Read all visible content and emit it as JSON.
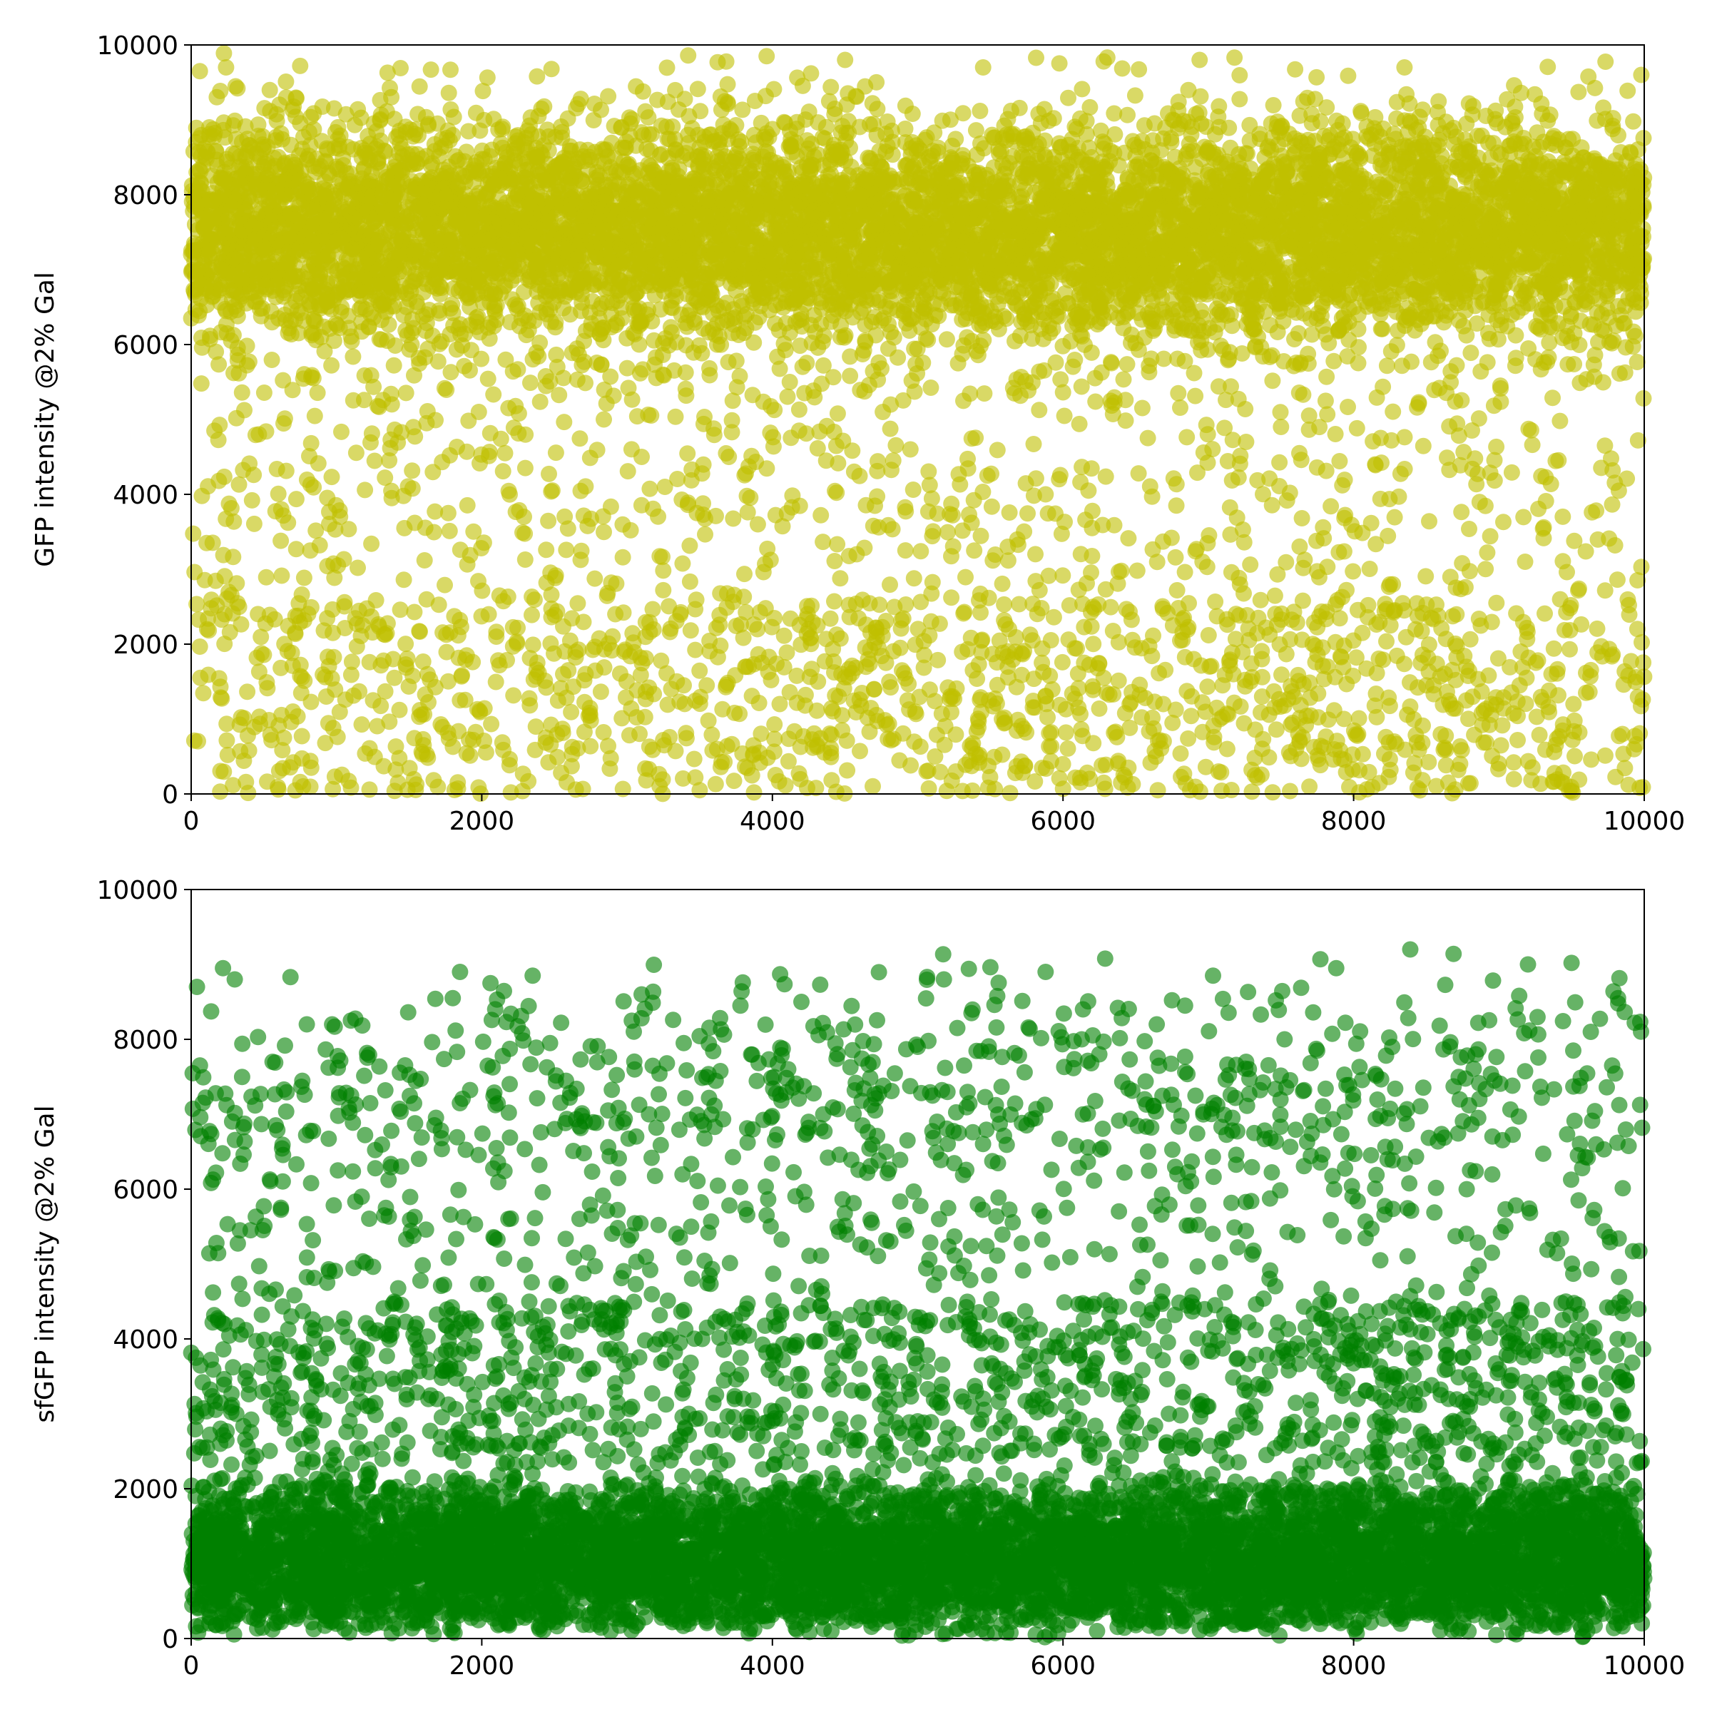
{
  "figure": {
    "background": "#ffffff"
  },
  "chart_data": [
    {
      "type": "scatter",
      "title": "",
      "xlabel": "",
      "ylabel": "GFP intensity @2% Gal",
      "xlim": [
        0,
        10000
      ],
      "ylim": [
        0,
        10000
      ],
      "xticks": [
        "0",
        "2000",
        "4000",
        "6000",
        "8000",
        "10000"
      ],
      "yticks": [
        "0",
        "2000",
        "4000",
        "6000",
        "8000",
        "10000"
      ],
      "grid": false,
      "legend": false,
      "marker_color": "#bfbf00",
      "marker_alpha": 0.6,
      "n_points": 10000,
      "distribution": {
        "x_range": [
          0,
          10000
        ],
        "components": [
          {
            "weight": 0.8,
            "y_mean": 7500,
            "y_sd": 750,
            "y_min": 5200,
            "y_max": 9900
          },
          {
            "weight": 0.13,
            "y_range": [
              0,
              2600
            ]
          },
          {
            "weight": 0.07,
            "y_range": [
              2600,
              5800
            ]
          }
        ]
      },
      "series": [
        {
          "values": [
            [
              120,
              7650
            ],
            [
              455,
              8100
            ],
            [
              880,
              7200
            ],
            [
              1210,
              6900
            ],
            [
              1650,
              7800
            ],
            [
              2050,
              7400
            ],
            [
              2440,
              8200
            ],
            [
              2900,
              7100
            ],
            [
              3300,
              7600
            ],
            [
              3750,
              8000
            ],
            [
              4150,
              7300
            ],
            [
              4600,
              6800
            ],
            [
              5050,
              7900
            ],
            [
              5500,
              7500
            ],
            [
              5900,
              8300
            ],
            [
              6300,
              7000
            ],
            [
              6750,
              7700
            ],
            [
              7150,
              8100
            ],
            [
              7600,
              6600
            ],
            [
              8050,
              7400
            ],
            [
              8450,
              7800
            ],
            [
              8900,
              7200
            ],
            [
              9300,
              8000
            ],
            [
              9750,
              7500
            ],
            [
              60,
              9650
            ],
            [
              240,
              9700
            ],
            [
              750,
              9720
            ],
            [
              1650,
              9670
            ],
            [
              2380,
              9580
            ],
            [
              3420,
              9860
            ],
            [
              3960,
              9850
            ],
            [
              4500,
              9800
            ],
            [
              5450,
              9700
            ],
            [
              6280,
              9780
            ],
            [
              6940,
              9800
            ],
            [
              7180,
              9830
            ],
            [
              8350,
              9700
            ],
            [
              9980,
              9600
            ],
            [
              70,
              5480
            ],
            [
              160,
              4850
            ],
            [
              430,
              4260
            ],
            [
              620,
              3800
            ],
            [
              820,
              3250
            ],
            [
              1010,
              3050
            ],
            [
              1240,
              3340
            ],
            [
              1380,
              3950
            ],
            [
              1620,
              4950
            ],
            [
              1780,
              4520
            ],
            [
              1980,
              5100
            ],
            [
              2160,
              4550
            ],
            [
              2290,
              3700
            ],
            [
              2520,
              5700
            ],
            [
              2840,
              5000
            ],
            [
              3100,
              4500
            ],
            [
              3260,
              4100
            ],
            [
              3480,
              3750
            ],
            [
              3700,
              4500
            ],
            [
              3900,
              3600
            ],
            [
              4120,
              5500
            ],
            [
              4370,
              4450
            ],
            [
              4580,
              3200
            ],
            [
              4760,
              5100
            ],
            [
              4950,
              4600
            ],
            [
              5240,
              3720
            ],
            [
              5480,
              4250
            ],
            [
              5620,
              3300
            ],
            [
              5880,
              4000
            ],
            [
              6200,
              3550
            ],
            [
              6520,
              4280
            ],
            [
              6780,
              3850
            ],
            [
              6960,
              3100
            ],
            [
              7260,
              4700
            ],
            [
              7500,
              4900
            ],
            [
              7790,
              3560
            ],
            [
              8100,
              2520
            ],
            [
              8260,
              4720
            ],
            [
              8520,
              3640
            ],
            [
              8770,
              2760
            ],
            [
              8940,
              3440
            ],
            [
              9180,
              3100
            ],
            [
              9420,
              4980
            ],
            [
              9640,
              3760
            ],
            [
              9880,
              4210
            ],
            [
              110,
              2200
            ],
            [
              230,
              2400
            ],
            [
              390,
              780
            ],
            [
              520,
              1490
            ],
            [
              700,
              1100
            ],
            [
              930,
              1300
            ],
            [
              1180,
              2250
            ],
            [
              1390,
              1800
            ],
            [
              1600,
              650
            ],
            [
              1850,
              1250
            ],
            [
              2100,
              2100
            ],
            [
              2320,
              170
            ],
            [
              2560,
              1600
            ],
            [
              2750,
              980
            ],
            [
              2980,
              1900
            ],
            [
              3150,
              330
            ],
            [
              3390,
              1450
            ],
            [
              3620,
              600
            ],
            [
              3820,
              1700
            ],
            [
              4050,
              1200
            ],
            [
              4250,
              2200
            ],
            [
              4480,
              850
            ],
            [
              4700,
              1400
            ],
            [
              4880,
              1950
            ],
            [
              5120,
              500
            ],
            [
              5380,
              1650
            ],
            [
              5580,
              1000
            ],
            [
              5790,
              2050
            ],
            [
              6020,
              820
            ],
            [
              6280,
              1550
            ],
            [
              6450,
              350
            ],
            [
              6690,
              1200
            ],
            [
              6900,
              1800
            ],
            [
              7130,
              600
            ],
            [
              7370,
              1300
            ],
            [
              7580,
              950
            ],
            [
              7820,
              1700
            ],
            [
              8060,
              2150
            ],
            [
              8280,
              700
            ],
            [
              8500,
              1450
            ],
            [
              8720,
              320
            ],
            [
              8950,
              1200
            ],
            [
              9150,
              1900
            ],
            [
              9380,
              560
            ],
            [
              9600,
              1350
            ],
            [
              9850,
              800
            ],
            [
              200,
              30
            ],
            [
              600,
              60
            ],
            [
              1400,
              40
            ],
            [
              2200,
              20
            ],
            [
              3500,
              50
            ],
            [
              4300,
              80
            ],
            [
              5200,
              40
            ],
            [
              6000,
              70
            ],
            [
              7300,
              30
            ],
            [
              8700,
              60
            ],
            [
              9500,
              40
            ],
            [
              9990,
              90
            ]
          ]
        }
      ]
    },
    {
      "type": "scatter",
      "title": "",
      "xlabel": "",
      "ylabel": "sfGFP intensity @2% Gal",
      "xlim": [
        0,
        10000
      ],
      "ylim": [
        0,
        10000
      ],
      "xticks": [
        "0",
        "2000",
        "4000",
        "6000",
        "8000",
        "10000"
      ],
      "yticks": [
        "0",
        "2000",
        "4000",
        "6000",
        "8000",
        "10000"
      ],
      "grid": false,
      "legend": false,
      "marker_color": "#008000",
      "marker_alpha": 0.6,
      "n_points": 10000,
      "distribution": {
        "x_range": [
          0,
          10000
        ],
        "components": [
          {
            "weight": 0.78,
            "y_mode": 900,
            "y_min": 0,
            "y_max": 2300
          },
          {
            "weight": 0.12,
            "y_range": [
              2300,
              4500
            ]
          },
          {
            "weight": 0.08,
            "y_mean": 7200,
            "y_sd": 850,
            "y_min": 5000,
            "y_max": 9200
          },
          {
            "weight": 0.02,
            "y_range": [
              4500,
              5800
            ]
          }
        ]
      },
      "series": [
        {
          "values": [
            [
              120,
              1000
            ],
            [
              500,
              800
            ],
            [
              900,
              1400
            ],
            [
              1300,
              600
            ],
            [
              1700,
              1100
            ],
            [
              2100,
              900
            ],
            [
              2500,
              1300
            ],
            [
              2900,
              700
            ],
            [
              3300,
              1200
            ],
            [
              3700,
              1000
            ],
            [
              4100,
              500
            ],
            [
              4500,
              1500
            ],
            [
              4900,
              900
            ],
            [
              5300,
              1100
            ],
            [
              5700,
              700
            ],
            [
              6100,
              1300
            ],
            [
              6500,
              1000
            ],
            [
              6900,
              600
            ],
            [
              7300,
              1400
            ],
            [
              7700,
              900
            ],
            [
              8100,
              1200
            ],
            [
              8500,
              800
            ],
            [
              8900,
              1100
            ],
            [
              9300,
              1000
            ],
            [
              9700,
              700
            ],
            [
              40,
              8700
            ],
            [
              300,
              8800
            ],
            [
              560,
              7700
            ],
            [
              970,
              8200
            ],
            [
              1340,
              5750
            ],
            [
              1800,
              8550
            ],
            [
              2060,
              8750
            ],
            [
              2350,
              8850
            ],
            [
              2470,
              7950
            ],
            [
              2870,
              7050
            ],
            [
              3100,
              8600
            ],
            [
              3390,
              7950
            ],
            [
              3780,
              8450
            ],
            [
              4200,
              8500
            ],
            [
              4620,
              6850
            ],
            [
              5000,
              7900
            ],
            [
              5180,
              8800
            ],
            [
              5370,
              8350
            ],
            [
              5880,
              8900
            ],
            [
              6250,
              7800
            ],
            [
              6840,
              8450
            ],
            [
              7260,
              7700
            ],
            [
              7880,
              8950
            ],
            [
              8390,
              9200
            ],
            [
              8840,
              7800
            ],
            [
              9200,
              9000
            ],
            [
              9500,
              9020
            ],
            [
              9820,
              8550
            ],
            [
              150,
              4620
            ],
            [
              340,
              4060
            ],
            [
              690,
              4300
            ],
            [
              950,
              4900
            ],
            [
              1180,
              3880
            ],
            [
              1530,
              4060
            ],
            [
              1860,
              4270
            ],
            [
              2120,
              4510
            ],
            [
              2360,
              4090
            ],
            [
              2820,
              4410
            ],
            [
              3060,
              4730
            ],
            [
              3550,
              4150
            ],
            [
              4020,
              3780
            ],
            [
              4330,
              4440
            ],
            [
              4760,
              4460
            ],
            [
              5280,
              4880
            ],
            [
              5630,
              4260
            ],
            [
              5960,
              4040
            ],
            [
              6330,
              4450
            ],
            [
              6770,
              4320
            ],
            [
              7080,
              5020
            ],
            [
              7480,
              4220
            ],
            [
              7780,
              4670
            ],
            [
              8220,
              3980
            ],
            [
              8510,
              4370
            ],
            [
              8780,
              4680
            ],
            [
              9160,
              4020
            ],
            [
              9540,
              4120
            ],
            [
              9870,
              4560
            ],
            [
              200,
              2600
            ],
            [
              600,
              3050
            ],
            [
              1000,
              2450
            ],
            [
              1400,
              3400
            ],
            [
              1800,
              2700
            ],
            [
              2200,
              3150
            ],
            [
              2600,
              2350
            ],
            [
              3000,
              3500
            ],
            [
              3400,
              2800
            ],
            [
              3800,
              3200
            ],
            [
              4200,
              2500
            ],
            [
              4600,
              3600
            ],
            [
              5000,
              2900
            ],
            [
              5400,
              3300
            ],
            [
              5800,
              2600
            ],
            [
              6200,
              3450
            ],
            [
              6600,
              2750
            ],
            [
              7000,
              3100
            ],
            [
              7400,
              2450
            ],
            [
              7800,
              3550
            ],
            [
              8200,
              2850
            ],
            [
              8600,
              3250
            ],
            [
              9000,
              2550
            ],
            [
              9400,
              3350
            ],
            [
              9800,
              2700
            ]
          ]
        }
      ]
    }
  ]
}
